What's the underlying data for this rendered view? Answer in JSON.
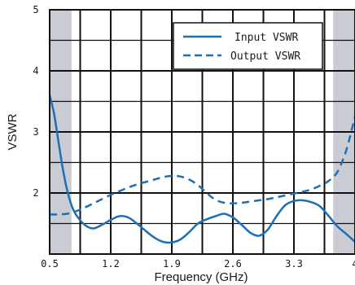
{
  "chart_data": {
    "type": "line",
    "xlabel": "Frequency (GHz)",
    "ylabel": "VSWR",
    "xlim": [
      0.5,
      4.0
    ],
    "ylim": [
      1.0,
      5.0
    ],
    "x_tick_labels": [
      "0.5",
      "1.2",
      "1.9",
      "2.6",
      "3.3",
      "4"
    ],
    "y_tick_labels": [
      "2",
      "3",
      "4",
      "5"
    ],
    "shaded_x_ranges": [
      [
        0.5,
        0.75
      ],
      [
        3.75,
        4.0
      ]
    ],
    "grid": true,
    "legend_position": "top-right",
    "colors": {
      "series": "#1f6fb5",
      "shade": "#c9ccd3",
      "grid": "#111111"
    },
    "series": [
      {
        "name": "Input VSWR",
        "style": "solid",
        "x": [
          0.5,
          0.55,
          0.6,
          0.65,
          0.7,
          0.75,
          0.8,
          0.9,
          1.0,
          1.1,
          1.2,
          1.3,
          1.4,
          1.5,
          1.6,
          1.7,
          1.8,
          1.9,
          2.0,
          2.1,
          2.2,
          2.3,
          2.4,
          2.5,
          2.6,
          2.7,
          2.8,
          2.9,
          3.0,
          3.1,
          3.2,
          3.3,
          3.4,
          3.5,
          3.6,
          3.7,
          3.8,
          3.9,
          4.0
        ],
        "y": [
          3.6,
          3.3,
          2.85,
          2.4,
          2.05,
          1.8,
          1.65,
          1.48,
          1.42,
          1.48,
          1.56,
          1.62,
          1.6,
          1.5,
          1.38,
          1.27,
          1.2,
          1.19,
          1.24,
          1.36,
          1.5,
          1.57,
          1.62,
          1.66,
          1.6,
          1.48,
          1.35,
          1.3,
          1.4,
          1.62,
          1.8,
          1.87,
          1.88,
          1.85,
          1.78,
          1.62,
          1.45,
          1.33,
          1.2
        ]
      },
      {
        "name": "Output VSWR",
        "style": "dashed",
        "x": [
          0.5,
          0.6,
          0.7,
          0.8,
          0.9,
          1.0,
          1.1,
          1.2,
          1.3,
          1.4,
          1.5,
          1.6,
          1.7,
          1.8,
          1.9,
          2.0,
          2.1,
          2.2,
          2.3,
          2.4,
          2.5,
          2.6,
          2.7,
          2.8,
          2.9,
          3.0,
          3.1,
          3.2,
          3.3,
          3.4,
          3.5,
          3.6,
          3.7,
          3.8,
          3.9,
          4.0
        ],
        "y": [
          1.65,
          1.65,
          1.66,
          1.7,
          1.76,
          1.83,
          1.9,
          1.97,
          2.03,
          2.09,
          2.14,
          2.18,
          2.22,
          2.26,
          2.28,
          2.27,
          2.22,
          2.13,
          2.0,
          1.89,
          1.84,
          1.83,
          1.84,
          1.86,
          1.88,
          1.9,
          1.93,
          1.96,
          1.99,
          2.02,
          2.06,
          2.12,
          2.2,
          2.35,
          2.7,
          3.25
        ]
      }
    ]
  }
}
